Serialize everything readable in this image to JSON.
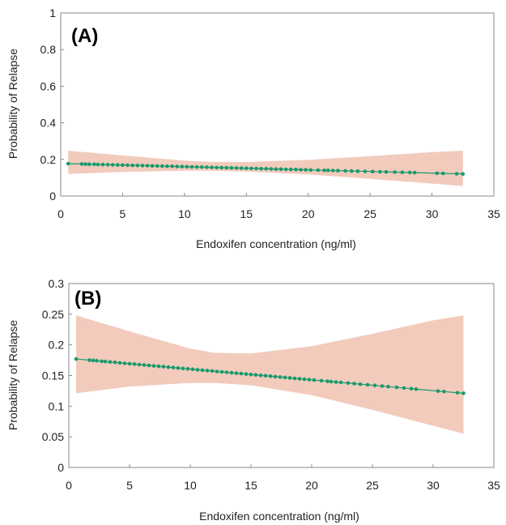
{
  "colors": {
    "band": "#f2cbbd",
    "series": "#1a9a6c",
    "frame": "#888888"
  },
  "chart_data": [
    {
      "type": "line",
      "panel_label": "(A)",
      "xlabel": "Endoxifen concentration (ng/ml)",
      "ylabel": "Probability of Relapse",
      "xlim": [
        0,
        35
      ],
      "ylim": [
        0,
        1
      ],
      "x_ticks": [
        "0",
        "5",
        "10",
        "15",
        "20",
        "25",
        "30",
        "35"
      ],
      "y_ticks": [
        "0",
        "0.2",
        "0.4",
        "0.6",
        "0.8",
        "1"
      ],
      "fit": {
        "x": [
          0.6,
          32.5
        ],
        "y": [
          0.177,
          0.121
        ]
      },
      "ci_band": {
        "x": [
          0.6,
          5,
          10,
          12,
          15,
          20,
          25,
          30,
          32.5
        ],
        "lower": [
          0.121,
          0.132,
          0.138,
          0.138,
          0.134,
          0.118,
          0.094,
          0.068,
          0.055
        ],
        "upper": [
          0.248,
          0.222,
          0.194,
          0.187,
          0.186,
          0.198,
          0.218,
          0.24,
          0.248
        ]
      },
      "points_x": [
        0.6,
        1.7,
        2.0,
        2.3,
        2.7,
        3.0,
        3.4,
        3.8,
        4.2,
        4.6,
        5.0,
        5.4,
        5.8,
        6.2,
        6.6,
        7.0,
        7.4,
        7.8,
        8.2,
        8.6,
        9.0,
        9.4,
        9.8,
        10.2,
        10.6,
        11.0,
        11.4,
        11.8,
        12.2,
        12.6,
        13.0,
        13.4,
        13.8,
        14.2,
        14.6,
        15.0,
        15.4,
        15.8,
        16.2,
        16.6,
        17.0,
        17.4,
        17.8,
        18.2,
        18.6,
        19.0,
        19.4,
        19.8,
        20.2,
        20.8,
        21.3,
        21.6,
        22.0,
        22.4,
        23.0,
        23.5,
        24.0,
        24.6,
        25.2,
        25.8,
        26.3,
        27.0,
        27.6,
        28.2,
        28.6,
        30.4,
        30.9,
        32.0,
        32.5
      ]
    },
    {
      "type": "line",
      "panel_label": "(B)",
      "xlabel": "Endoxifen concentration (ng/ml)",
      "ylabel": "Probability of Relapse",
      "xlim": [
        0,
        35
      ],
      "ylim": [
        0,
        0.3
      ],
      "x_ticks": [
        "0",
        "5",
        "10",
        "15",
        "20",
        "25",
        "30",
        "35"
      ],
      "y_ticks": [
        "0",
        "0.05",
        "0.1",
        "0.15",
        "0.2",
        "0.25",
        "0.3"
      ],
      "fit": {
        "x": [
          0.6,
          32.5
        ],
        "y": [
          0.177,
          0.121
        ]
      },
      "ci_band": {
        "x": [
          0.6,
          5,
          10,
          12,
          15,
          20,
          25,
          30,
          32.5
        ],
        "lower": [
          0.121,
          0.132,
          0.138,
          0.138,
          0.134,
          0.118,
          0.094,
          0.068,
          0.055
        ],
        "upper": [
          0.248,
          0.222,
          0.194,
          0.187,
          0.186,
          0.198,
          0.218,
          0.24,
          0.248
        ]
      },
      "points_x": [
        0.6,
        1.7,
        2.0,
        2.3,
        2.7,
        3.0,
        3.4,
        3.8,
        4.2,
        4.6,
        5.0,
        5.4,
        5.8,
        6.2,
        6.6,
        7.0,
        7.4,
        7.8,
        8.2,
        8.6,
        9.0,
        9.4,
        9.8,
        10.2,
        10.6,
        11.0,
        11.4,
        11.8,
        12.2,
        12.6,
        13.0,
        13.4,
        13.8,
        14.2,
        14.6,
        15.0,
        15.4,
        15.8,
        16.2,
        16.6,
        17.0,
        17.4,
        17.8,
        18.2,
        18.6,
        19.0,
        19.4,
        19.8,
        20.2,
        20.8,
        21.3,
        21.6,
        22.0,
        22.4,
        23.0,
        23.5,
        24.0,
        24.6,
        25.2,
        25.8,
        26.3,
        27.0,
        27.6,
        28.2,
        28.6,
        30.4,
        30.9,
        32.0,
        32.5
      ]
    }
  ]
}
